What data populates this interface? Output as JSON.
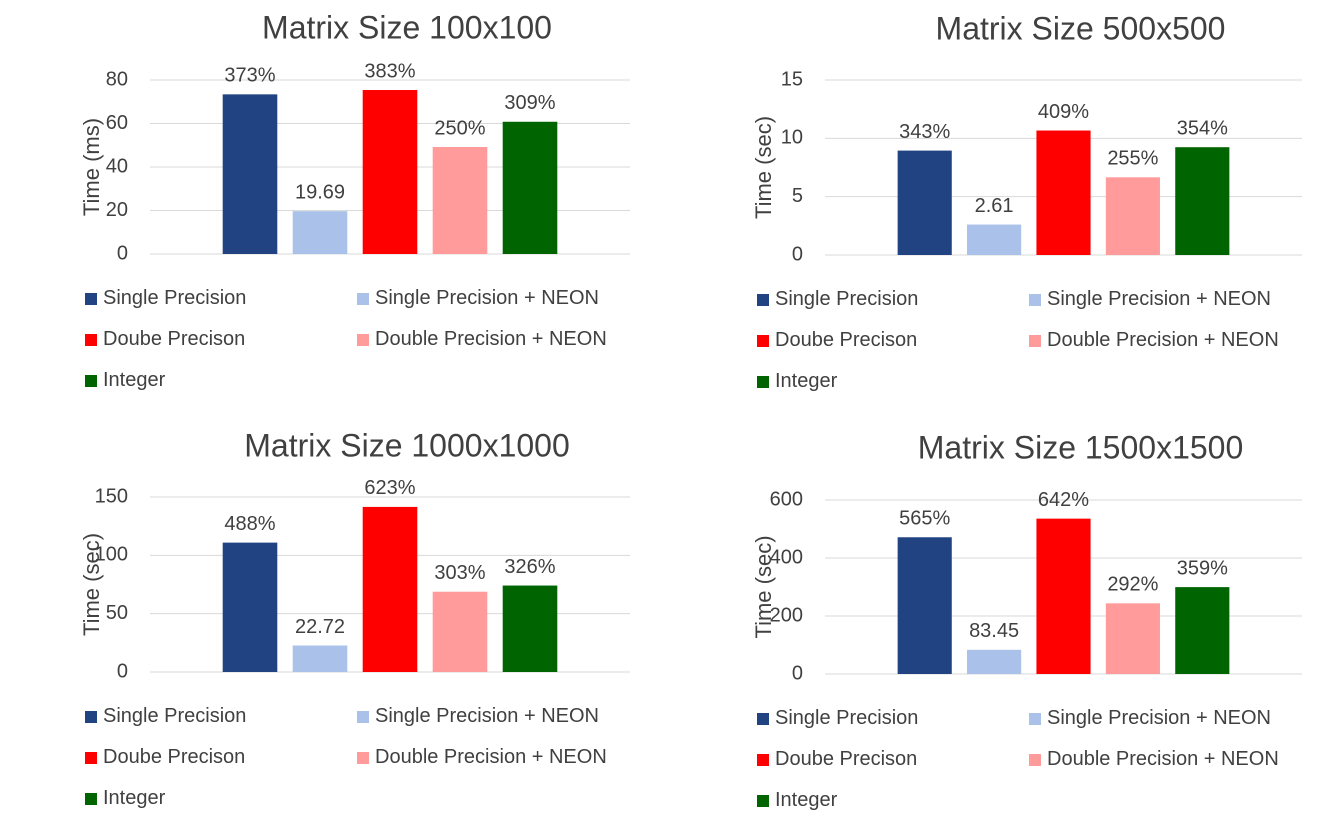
{
  "legend": {
    "single": "Single Precision",
    "single_neon": "Single Precision + NEON",
    "double": "Doube Precison",
    "double_neon": "Double Precision + NEON",
    "integer": "Integer"
  },
  "colors": {
    "single": "#224382",
    "single_neon": "#aac1e9",
    "double": "#ff0000",
    "double_neon": "#ff9b9b",
    "integer": "#006400",
    "grid": "#d9d9d9",
    "text": "#404040"
  },
  "chart_data": [
    {
      "type": "bar",
      "title": "Matrix Size 100x100",
      "ylabel": "Time (ms)",
      "ylim": [
        0,
        80
      ],
      "yticks": [
        "0",
        "20",
        "40",
        "60",
        "80"
      ],
      "categories": [
        "Single Precision",
        "Single Precision + NEON",
        "Doube Precison",
        "Double Precision + NEON",
        "Integer"
      ],
      "values": [
        73.4,
        19.69,
        75.4,
        49.2,
        60.8
      ],
      "data_labels": [
        "373%",
        "19.69",
        "383%",
        "250%",
        "309%"
      ],
      "grid": true,
      "legend_position": "bottom"
    },
    {
      "type": "bar",
      "title": "Matrix Size 500x500",
      "ylabel": "Time (sec)",
      "ylim": [
        0,
        15
      ],
      "yticks": [
        "0",
        "5",
        "10",
        "15"
      ],
      "categories": [
        "Single Precision",
        "Single Precision + NEON",
        "Doube Precison",
        "Double Precision + NEON",
        "Integer"
      ],
      "values": [
        8.95,
        2.61,
        10.67,
        6.66,
        9.24
      ],
      "data_labels": [
        "343%",
        "2.61",
        "409%",
        "255%",
        "354%"
      ],
      "grid": true,
      "legend_position": "bottom"
    },
    {
      "type": "bar",
      "title": "Matrix Size 1000x1000",
      "ylabel": "Time (sec)",
      "ylim": [
        0,
        150
      ],
      "yticks": [
        "0",
        "50",
        "100",
        "150"
      ],
      "categories": [
        "Single Precision",
        "Single Precision + NEON",
        "Doube Precison",
        "Double Precision + NEON",
        "Integer"
      ],
      "values": [
        110.9,
        22.72,
        141.5,
        68.8,
        74.1
      ],
      "data_labels": [
        "488%",
        "22.72",
        "623%",
        "303%",
        "326%"
      ],
      "grid": true,
      "legend_position": "bottom"
    },
    {
      "type": "bar",
      "title": "Matrix Size 1500x1500",
      "ylabel": "Time (sec)",
      "ylim": [
        0,
        600
      ],
      "yticks": [
        "0",
        "200",
        "400",
        "600"
      ],
      "categories": [
        "Single Precision",
        "Single Precision + NEON",
        "Doube Precison",
        "Double Precision + NEON",
        "Integer"
      ],
      "values": [
        471.5,
        83.45,
        535.7,
        243.7,
        299.6
      ],
      "data_labels": [
        "565%",
        "83.45",
        "642%",
        "292%",
        "359%"
      ],
      "grid": true,
      "legend_position": "bottom"
    }
  ]
}
